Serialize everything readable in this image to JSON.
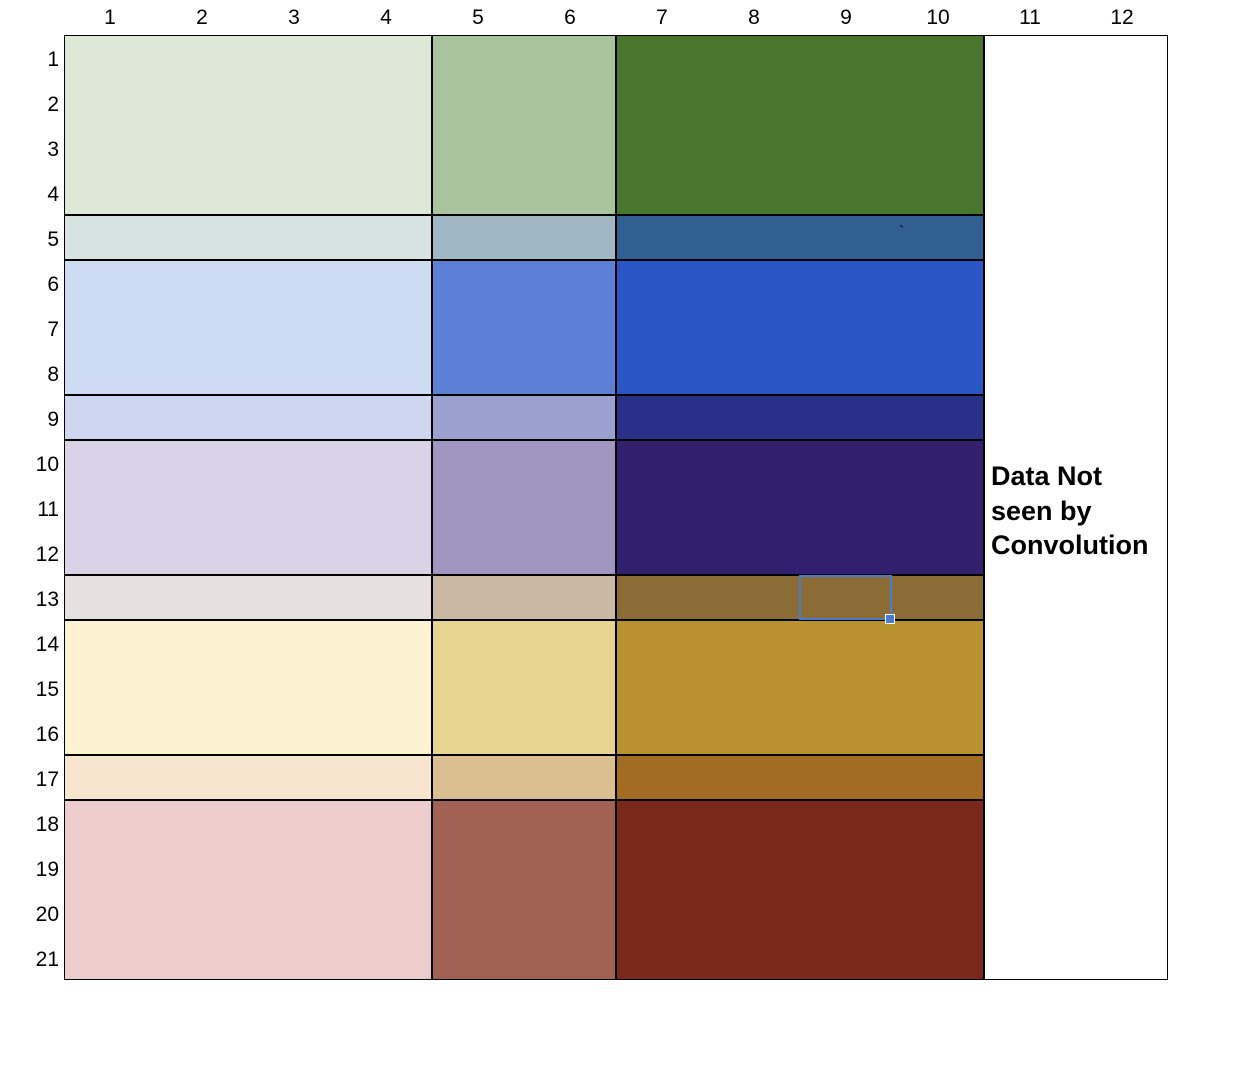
{
  "column_headers": [
    "1",
    "2",
    "3",
    "4",
    "5",
    "6",
    "7",
    "8",
    "9",
    "10",
    "11",
    "12"
  ],
  "row_headers": [
    "1",
    "2",
    "3",
    "4",
    "5",
    "6",
    "7",
    "8",
    "9",
    "10",
    "11",
    "12",
    "13",
    "14",
    "15",
    "16",
    "17",
    "18",
    "19",
    "20",
    "21"
  ],
  "bands": [
    {
      "name": "green",
      "rows": [
        1,
        4
      ],
      "colors": [
        "#dde8d6",
        "#a9c49c",
        "#48762e"
      ]
    },
    {
      "name": "blue-gray",
      "rows": [
        5,
        5
      ],
      "colors": [
        "#d6e3e0",
        "#a0b8c4",
        "#325f91"
      ]
    },
    {
      "name": "blue",
      "rows": [
        6,
        8
      ],
      "colors": [
        "#cddbf3",
        "#5b7fd4",
        "#2a55c5"
      ]
    },
    {
      "name": "indigo",
      "rows": [
        9,
        9
      ],
      "colors": [
        "#cfd6f0",
        "#9aa0cf",
        "#2a2f88"
      ]
    },
    {
      "name": "violet",
      "rows": [
        10,
        12
      ],
      "colors": [
        "#d8d3e7",
        "#a097c0",
        "#321f6e"
      ]
    },
    {
      "name": "taupe",
      "rows": [
        13,
        13
      ],
      "colors": [
        "#e6e0e0",
        "#c9b8a4",
        "#8b6c34"
      ]
    },
    {
      "name": "gold",
      "rows": [
        14,
        16
      ],
      "colors": [
        "#fcf1d0",
        "#e7d491",
        "#b8922e"
      ]
    },
    {
      "name": "orange",
      "rows": [
        17,
        17
      ],
      "colors": [
        "#f8e5cf",
        "#dbbf90",
        "#a36c23"
      ]
    },
    {
      "name": "red",
      "rows": [
        18,
        21
      ],
      "colors": [
        "#edcecc",
        "#a06052",
        "#7a2819"
      ]
    }
  ],
  "note": "Data Not\nseen by\nConvolution",
  "stray_mark": "`",
  "selection": {
    "row": 13,
    "col": 9,
    "color": "#4a7bd3"
  }
}
